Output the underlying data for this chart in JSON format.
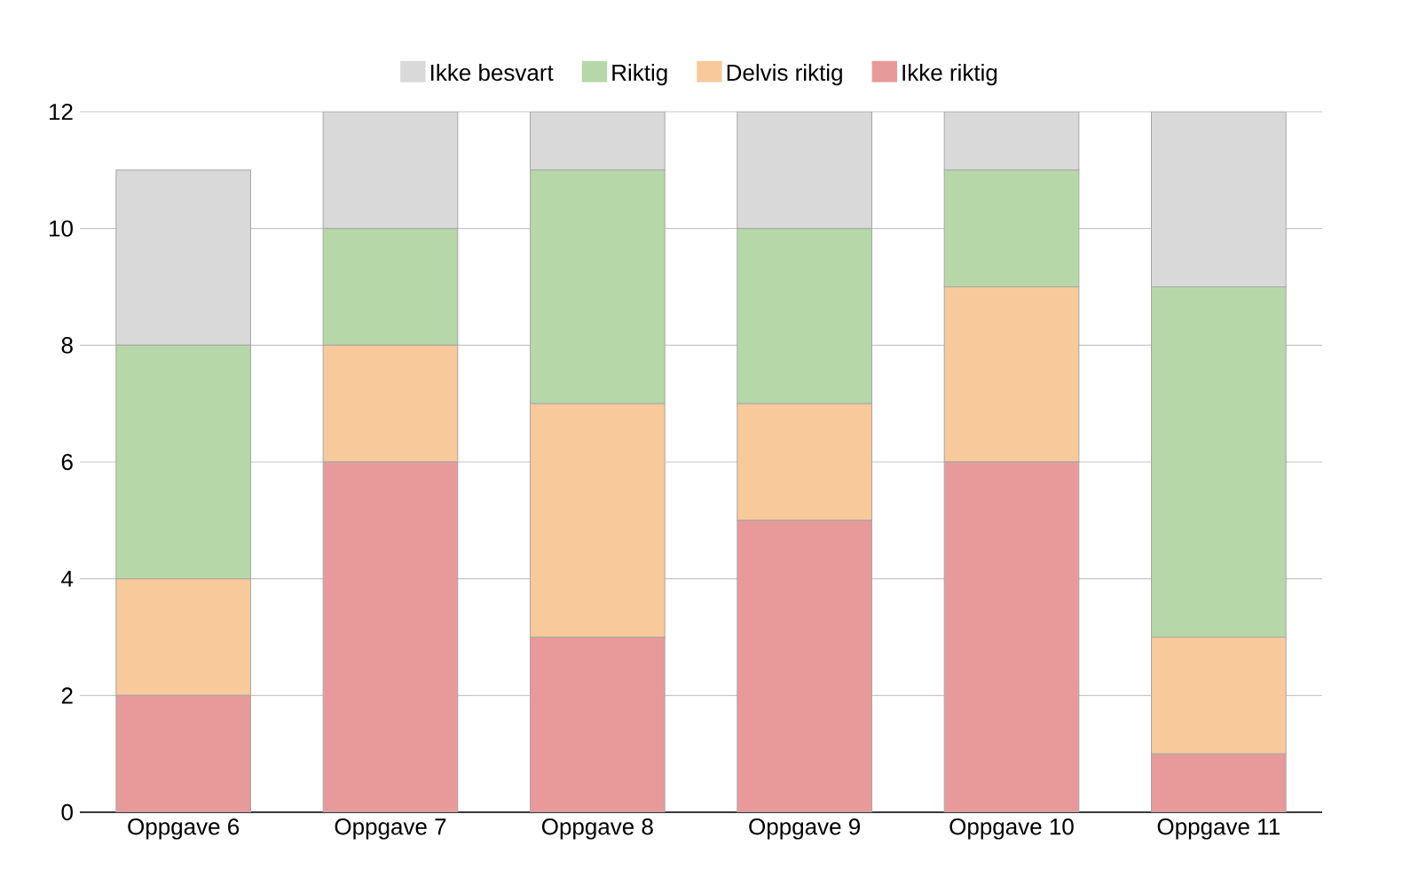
{
  "chart_data": {
    "type": "bar",
    "stacked": true,
    "categories": [
      "Oppgave 6",
      "Oppgave 7",
      "Oppgave 8",
      "Oppgave 9",
      "Oppgave 10",
      "Oppgave 11"
    ],
    "series": [
      {
        "name": "Ikke riktig",
        "color": "#e89a9a",
        "values": [
          2,
          6,
          3,
          5,
          6,
          1
        ]
      },
      {
        "name": "Delvis riktig",
        "color": "#f8c99b",
        "values": [
          2,
          2,
          4,
          2,
          3,
          2
        ]
      },
      {
        "name": "Riktig",
        "color": "#b6d8a8",
        "values": [
          4,
          2,
          4,
          3,
          2,
          6
        ]
      },
      {
        "name": "Ikke besvart",
        "color": "#d9d9d9",
        "values": [
          3,
          2,
          1,
          2,
          1,
          3
        ]
      }
    ],
    "ylim": [
      0,
      12
    ],
    "yticks": [
      0,
      2,
      4,
      6,
      8,
      10,
      12
    ],
    "grid": "y",
    "legend": "top"
  }
}
